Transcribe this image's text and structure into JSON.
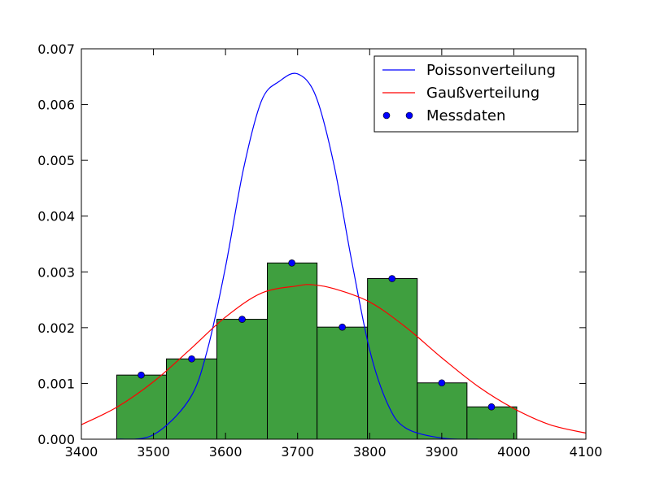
{
  "chart_data": {
    "type": "bar",
    "title": "",
    "xlabel": "",
    "ylabel": "",
    "xlim": [
      3400,
      4100
    ],
    "ylim": [
      0,
      0.007
    ],
    "x_ticks": [
      3400,
      3500,
      3600,
      3700,
      3800,
      3900,
      4000,
      4100
    ],
    "y_ticks": [
      0.0,
      0.001,
      0.002,
      0.003,
      0.004,
      0.005,
      0.006,
      0.007
    ],
    "y_tick_labels": [
      "0.000",
      "0.001",
      "0.002",
      "0.003",
      "0.004",
      "0.005",
      "0.006",
      "0.007"
    ],
    "grid": false,
    "legend_position": "top-right",
    "colors": {
      "histogram": "#3f9f3f",
      "poisson": "#0000ff",
      "gauss": "#ff0000",
      "measurements": "#0000ff"
    },
    "histogram": {
      "bin_edges": [
        3449,
        3518,
        3588,
        3658,
        3727,
        3797,
        3866,
        3935,
        4004
      ],
      "values": [
        0.00115,
        0.00144,
        0.00215,
        0.00316,
        0.00201,
        0.00288,
        0.00101,
        0.00058
      ]
    },
    "series": [
      {
        "name": "Poissonverteilung",
        "kind": "line",
        "x": [
          3450,
          3500,
          3550,
          3575,
          3600,
          3625,
          3650,
          3675,
          3700,
          3725,
          3750,
          3775,
          3800,
          3825,
          3850,
          3900,
          3950
        ],
        "y": [
          0.0,
          8e-05,
          0.00072,
          0.00161,
          0.00309,
          0.00485,
          0.00607,
          0.00642,
          0.00655,
          0.00616,
          0.00495,
          0.0032,
          0.0016,
          0.00063,
          0.0002,
          2e-05,
          0.0
        ]
      },
      {
        "name": "Gaußverteilung",
        "kind": "line",
        "x": [
          3400,
          3450,
          3500,
          3550,
          3600,
          3650,
          3700,
          3720,
          3750,
          3800,
          3850,
          3900,
          3950,
          4000,
          4050,
          4100
        ],
        "y": [
          0.00026,
          0.00058,
          0.00103,
          0.0016,
          0.00219,
          0.00262,
          0.00275,
          0.00277,
          0.0027,
          0.00246,
          0.00201,
          0.00146,
          0.00095,
          0.00055,
          0.00026,
          0.00011
        ]
      },
      {
        "name": "Messdaten",
        "kind": "scatter",
        "x": [
          3483,
          3553,
          3623,
          3692,
          3762,
          3831,
          3900,
          3969
        ],
        "y": [
          0.00115,
          0.00144,
          0.00215,
          0.00316,
          0.00201,
          0.00288,
          0.00101,
          0.00058
        ]
      }
    ]
  }
}
